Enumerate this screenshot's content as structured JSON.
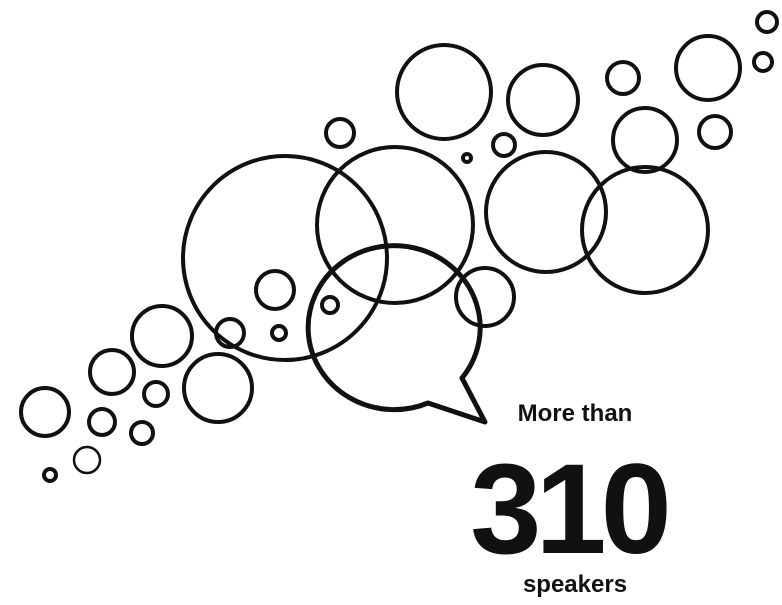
{
  "lead": "More than",
  "number": "310",
  "unit": "speakers"
}
